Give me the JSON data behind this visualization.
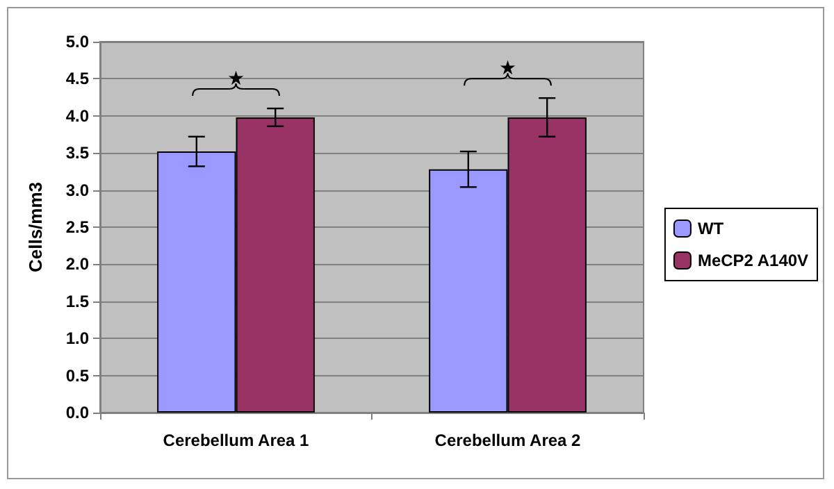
{
  "chart_data": {
    "type": "bar",
    "ylabel": "Cells/mm3",
    "categories": [
      "Cerebellum Area 1",
      "Cerebellum Area 2"
    ],
    "series": [
      {
        "name": "WT",
        "color": "#9999ff",
        "values": [
          3.52,
          3.28
        ],
        "errors": [
          0.2,
          0.24
        ]
      },
      {
        "name": "MeCP2 A140V",
        "color": "#993366",
        "values": [
          3.98,
          3.98
        ],
        "errors": [
          0.12,
          0.26
        ]
      }
    ],
    "ylim": [
      0,
      5
    ],
    "yticks": [
      {
        "value": 0,
        "label": "0.0"
      },
      0.5,
      {
        "value": 1,
        "label": "1.0"
      },
      1.5,
      {
        "value": 2,
        "label": "2.0"
      },
      2.5,
      {
        "value": 3,
        "label": "3.0"
      },
      3.5,
      {
        "value": 4,
        "label": "4.0"
      },
      4.5,
      {
        "value": 5,
        "label": "5.0"
      }
    ],
    "grid": "y",
    "legend": "right",
    "annotations": [
      "★",
      "★"
    ]
  }
}
